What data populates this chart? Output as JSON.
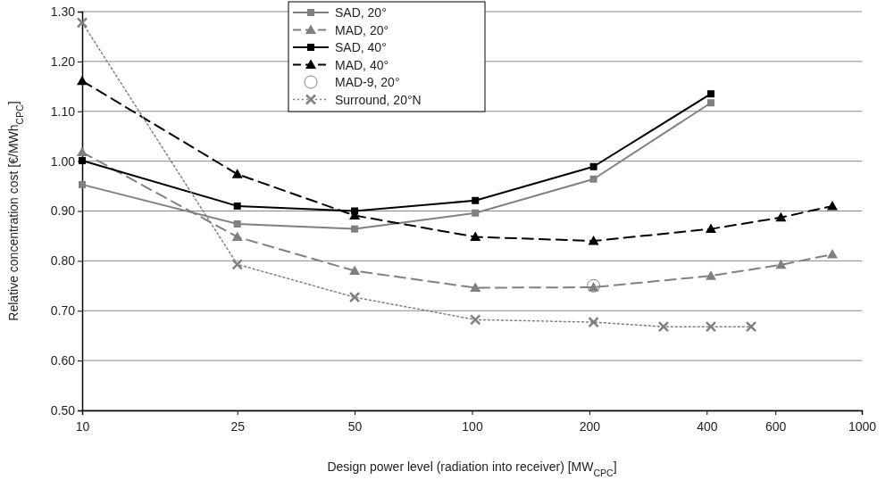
{
  "chart_data": {
    "type": "line",
    "xlabel": "Design power level (radiation into receiver) [MW$_{CPC}$]",
    "ylabel": "Relative concentration cost [€/MWh$_{CPC}$]",
    "log": "x",
    "xlim": [
      10,
      1000
    ],
    "xticks": [
      10,
      25,
      50,
      100,
      200,
      400,
      600,
      1000
    ],
    "ylim": [
      0.5,
      1.3
    ],
    "yticks": [
      {
        "value": 0.5,
        "label": "0.50"
      },
      {
        "value": 0.6,
        "label": "0.60"
      },
      {
        "value": 0.7,
        "label": "0.70"
      },
      {
        "value": 0.8,
        "label": "0.80"
      },
      {
        "value": 0.9,
        "label": "0.90"
      },
      {
        "value": 1.0,
        "label": "1.00"
      },
      {
        "value": 1.1,
        "label": "1.10"
      },
      {
        "value": 1.2,
        "label": "1.20"
      },
      {
        "value": 1.3,
        "label": "1.30"
      }
    ],
    "grid": "y",
    "legend": "top",
    "series": [
      {
        "name": "SAD, 20°",
        "color": "#808080",
        "marker": "square",
        "line_style": "solid",
        "x": [
          10,
          25,
          50,
          102,
          205,
          410
        ],
        "values": [
          0.953,
          0.874,
          0.864,
          0.896,
          0.964,
          1.117
        ]
      },
      {
        "name": "MAD, 20°",
        "color": "#808080",
        "marker": "triangle",
        "line_style": "dashed",
        "x": [
          10,
          25,
          50,
          102,
          205,
          410,
          620,
          840
        ],
        "values": [
          1.018,
          0.848,
          0.78,
          0.746,
          0.747,
          0.77,
          0.792,
          0.813
        ]
      },
      {
        "name": "SAD, 40°",
        "color": "#000000",
        "marker": "square",
        "line_style": "solid",
        "x": [
          10,
          25,
          50,
          102,
          205,
          410
        ],
        "values": [
          1.001,
          0.91,
          0.9,
          0.921,
          0.989,
          1.135
        ]
      },
      {
        "name": "MAD, 40°",
        "color": "#000000",
        "marker": "triangle",
        "line_style": "dashed",
        "x": [
          10,
          25,
          50,
          102,
          205,
          410,
          620,
          840
        ],
        "values": [
          1.161,
          0.974,
          0.891,
          0.848,
          0.84,
          0.864,
          0.887,
          0.91
        ]
      },
      {
        "name": "MAD-9, 20°",
        "type": "scatter",
        "color": "#808080",
        "marker": "circle",
        "x": [
          205
        ],
        "values": [
          0.75
        ]
      },
      {
        "name": "Surround, 20°N",
        "color": "#808080",
        "marker": "cross",
        "line_style": "dotted",
        "x": [
          10,
          25,
          50,
          102,
          205,
          310,
          410,
          520
        ],
        "values": [
          1.278,
          0.793,
          0.727,
          0.682,
          0.677,
          0.668,
          0.668,
          0.668
        ]
      }
    ]
  }
}
